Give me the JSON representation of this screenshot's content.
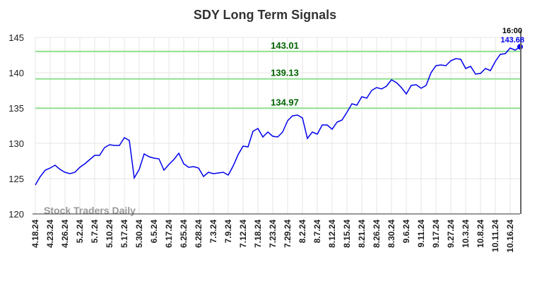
{
  "chart_data": {
    "type": "line",
    "title": "SDY Long Term Signals",
    "watermark": "Stock Traders Daily",
    "time_label": "16:00",
    "categories": [
      "4.18.24",
      null,
      null,
      "4.23.24",
      null,
      null,
      "4.26.24",
      null,
      null,
      "5.2.24",
      null,
      null,
      "5.7.24",
      null,
      null,
      "5.10.24",
      null,
      null,
      "5.17.24",
      null,
      null,
      "5.30.24",
      null,
      null,
      "6.5.24",
      null,
      null,
      "6.17.24",
      null,
      null,
      "6.25.24",
      null,
      null,
      "6.28.24",
      null,
      null,
      "7.3.24",
      null,
      null,
      "7.9.24",
      null,
      null,
      "7.12.24",
      null,
      null,
      "7.18.24",
      null,
      null,
      "7.23.24",
      null,
      null,
      "7.29.24",
      null,
      null,
      "8.2.24",
      null,
      null,
      "8.7.24",
      null,
      null,
      "8.12.24",
      null,
      null,
      "8.15.24",
      null,
      null,
      "8.21.24",
      null,
      null,
      "8.26.24",
      null,
      null,
      "8.30.24",
      null,
      null,
      "9.6.24",
      null,
      null,
      "9.11.24",
      null,
      null,
      "9.17.24",
      null,
      null,
      "9.27.24",
      null,
      null,
      "10.3.24",
      null,
      null,
      "10.8.24",
      null,
      null,
      "10.11.24",
      null,
      null,
      "10.16.24",
      null,
      null
    ],
    "series": [
      {
        "name": "SDY",
        "color": "#0000ee",
        "values": [
          124.1,
          125.3,
          126.2,
          126.5,
          126.9,
          126.3,
          125.9,
          125.7,
          125.9,
          126.6,
          127.1,
          127.7,
          128.3,
          128.3,
          129.4,
          129.8,
          129.7,
          129.7,
          130.8,
          130.4,
          125.1,
          126.3,
          128.5,
          128.1,
          127.9,
          127.8,
          126.2,
          127.0,
          127.7,
          128.6,
          127.1,
          126.6,
          126.7,
          126.5,
          125.3,
          125.9,
          125.7,
          125.8,
          125.9,
          125.5,
          126.8,
          128.4,
          129.6,
          129.5,
          131.7,
          132.1,
          130.9,
          131.6,
          131.0,
          130.9,
          131.6,
          133.2,
          133.9,
          134.0,
          133.6,
          130.7,
          131.6,
          131.3,
          132.6,
          132.6,
          132.0,
          133.0,
          133.3,
          134.4,
          135.6,
          135.4,
          136.6,
          136.4,
          137.5,
          137.9,
          137.7,
          138.1,
          139.0,
          138.6,
          137.9,
          137.0,
          138.2,
          138.3,
          137.8,
          138.2,
          140.0,
          141.0,
          141.1,
          141.0,
          141.7,
          142.0,
          141.9,
          140.6,
          140.9,
          139.8,
          139.9,
          140.6,
          140.3,
          141.6,
          142.6,
          142.7,
          143.5,
          143.2,
          143.68
        ]
      }
    ],
    "hlines": [
      {
        "value": 143.01,
        "color": "#90e090"
      },
      {
        "value": 139.13,
        "color": "#90e090"
      },
      {
        "value": 134.97,
        "color": "#90e090"
      }
    ],
    "ylim": [
      120,
      145
    ],
    "yticks": [
      120,
      125,
      130,
      135,
      140,
      145
    ],
    "grid": true
  }
}
